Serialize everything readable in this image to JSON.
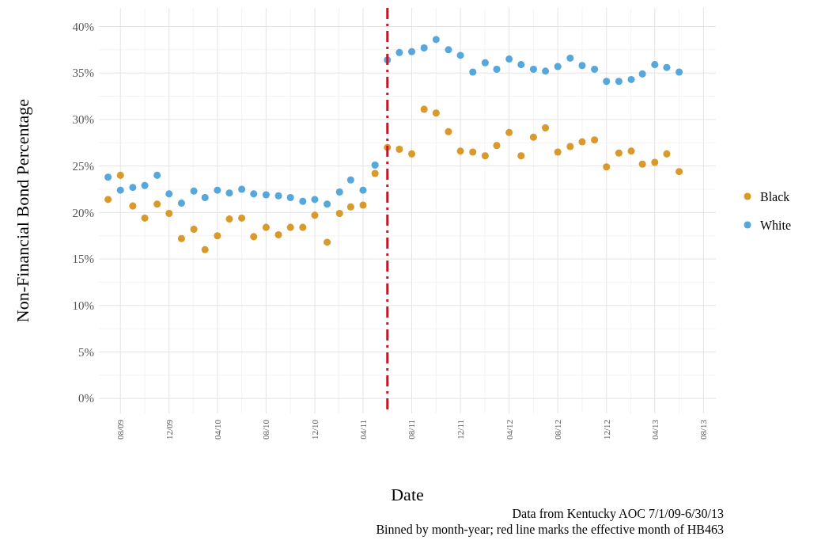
{
  "chart_data": {
    "type": "scatter",
    "xlabel": "Date",
    "ylabel": "Non-Financial Bond Percentage",
    "x": [
      "2009-07",
      "2009-08",
      "2009-09",
      "2009-10",
      "2009-11",
      "2009-12",
      "2010-01",
      "2010-02",
      "2010-03",
      "2010-04",
      "2010-05",
      "2010-06",
      "2010-07",
      "2010-08",
      "2010-09",
      "2010-10",
      "2010-11",
      "2010-12",
      "2011-01",
      "2011-02",
      "2011-03",
      "2011-04",
      "2011-05",
      "2011-06",
      "2011-07",
      "2011-08",
      "2011-09",
      "2011-10",
      "2011-11",
      "2011-12",
      "2012-01",
      "2012-02",
      "2012-03",
      "2012-04",
      "2012-05",
      "2012-06",
      "2012-07",
      "2012-08",
      "2012-09",
      "2012-10",
      "2012-11",
      "2012-12",
      "2013-01",
      "2013-02",
      "2013-03",
      "2013-04",
      "2013-05",
      "2013-06"
    ],
    "series": [
      {
        "name": "Black",
        "color": "#d9992b",
        "values": [
          21.4,
          24.0,
          20.7,
          19.4,
          20.9,
          19.9,
          17.2,
          18.2,
          16.0,
          17.5,
          19.3,
          19.4,
          17.4,
          18.4,
          17.6,
          18.4,
          18.4,
          19.7,
          16.8,
          19.9,
          20.6,
          20.8,
          24.2,
          27.0,
          26.8,
          26.3,
          31.1,
          30.7,
          28.7,
          26.6,
          26.5,
          26.1,
          27.2,
          28.6,
          26.1,
          28.1,
          29.1,
          26.5,
          27.1,
          27.6,
          27.8,
          24.9,
          26.4,
          26.6,
          25.2,
          25.4,
          26.3,
          24.4
        ]
      },
      {
        "name": "White",
        "color": "#56a8dc",
        "values": [
          23.8,
          22.4,
          22.7,
          22.9,
          24.0,
          22.0,
          21.0,
          22.3,
          21.6,
          22.4,
          22.1,
          22.5,
          22.0,
          21.9,
          21.8,
          21.6,
          21.2,
          21.4,
          20.9,
          22.2,
          23.5,
          22.4,
          25.1,
          36.4,
          37.2,
          37.3,
          37.7,
          38.6,
          37.5,
          36.9,
          35.1,
          36.1,
          35.4,
          36.5,
          35.9,
          35.4,
          35.2,
          35.7,
          36.6,
          35.8,
          35.4,
          34.1,
          34.1,
          34.3,
          34.9,
          35.9,
          35.6,
          35.1
        ]
      }
    ],
    "xlim": [
      "2009-06-08",
      "2013-09-01"
    ],
    "xticks": [
      {
        "value": "2009-08",
        "label": "08/09"
      },
      {
        "value": "2009-12",
        "label": "12/09"
      },
      {
        "value": "2010-04",
        "label": "04/10"
      },
      {
        "value": "2010-08",
        "label": "08/10"
      },
      {
        "value": "2010-12",
        "label": "12/10"
      },
      {
        "value": "2011-04",
        "label": "04/11"
      },
      {
        "value": "2011-08",
        "label": "08/11"
      },
      {
        "value": "2011-12",
        "label": "12/11"
      },
      {
        "value": "2012-04",
        "label": "04/12"
      },
      {
        "value": "2012-08",
        "label": "08/12"
      },
      {
        "value": "2012-12",
        "label": "12/12"
      },
      {
        "value": "2013-04",
        "label": "04/13"
      },
      {
        "value": "2013-08",
        "label": "08/13"
      }
    ],
    "ylim": [
      -1.6,
      42
    ],
    "yticks": [
      {
        "value": 0,
        "label": "0%"
      },
      {
        "value": 5,
        "label": "5%"
      },
      {
        "value": 10,
        "label": "10%"
      },
      {
        "value": 15,
        "label": "15%"
      },
      {
        "value": 20,
        "label": "20%"
      },
      {
        "value": 25,
        "label": "25%"
      },
      {
        "value": 30,
        "label": "30%"
      },
      {
        "value": 35,
        "label": "35%"
      },
      {
        "value": 40,
        "label": "40%"
      }
    ],
    "ref_lines": [
      {
        "axis": "x",
        "value": "2011-06",
        "color": "#c0182a",
        "line_style": "dashdot"
      }
    ],
    "grid": true,
    "legend": "right",
    "marker": "circle",
    "annotations": [
      "Data from Kentucky AOC 7/1/09-6/30/13",
      "Binned by month-year; red line marks the effective month of HB463"
    ]
  }
}
